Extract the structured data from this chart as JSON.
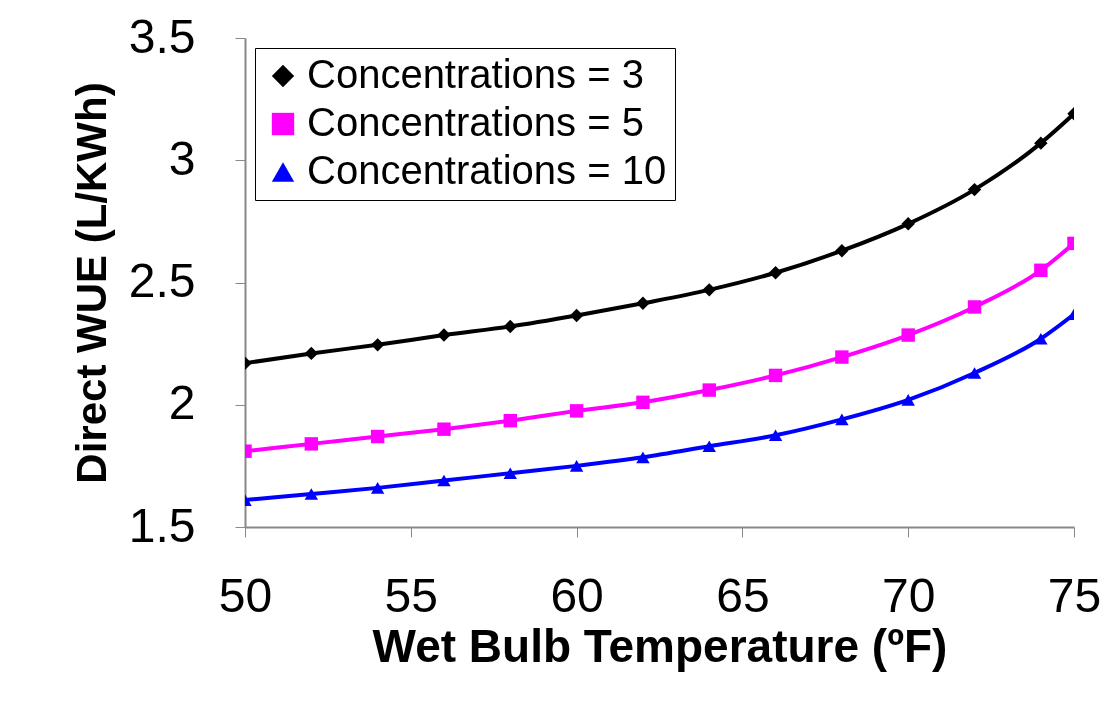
{
  "chart_data": {
    "type": "line",
    "xlabel": "Wet Bulb Temperature (ºF)",
    "ylabel": "Direct WUE (L/KWh)",
    "xlim": [
      50,
      75
    ],
    "xticks": [
      50,
      55,
      60,
      65,
      70,
      75
    ],
    "ylim": [
      1.5,
      3.5
    ],
    "yticks": [
      1.5,
      2,
      2.5,
      3,
      3.5
    ],
    "grid": false,
    "legend": "top left",
    "x": [
      50,
      52,
      54,
      56,
      58,
      60,
      62,
      64,
      66,
      68,
      70,
      72,
      74,
      75
    ],
    "series": [
      {
        "name": "Concentrations = 3",
        "color": "#000000",
        "marker": "diamond",
        "values": [
          2.17,
          2.21,
          2.245,
          2.285,
          2.32,
          2.365,
          2.415,
          2.47,
          2.54,
          2.63,
          2.74,
          2.88,
          3.07,
          3.19
        ]
      },
      {
        "name": "Concentrations = 5",
        "color": "#ff00ff",
        "marker": "square",
        "values": [
          1.81,
          1.84,
          1.87,
          1.9,
          1.935,
          1.975,
          2.01,
          2.06,
          2.12,
          2.195,
          2.285,
          2.4,
          2.55,
          2.66
        ]
      },
      {
        "name": "Concentrations = 10",
        "color": "#0000ff",
        "marker": "triangle",
        "values": [
          1.61,
          1.635,
          1.66,
          1.69,
          1.72,
          1.75,
          1.785,
          1.83,
          1.875,
          1.94,
          2.02,
          2.13,
          2.27,
          2.37
        ]
      }
    ]
  }
}
